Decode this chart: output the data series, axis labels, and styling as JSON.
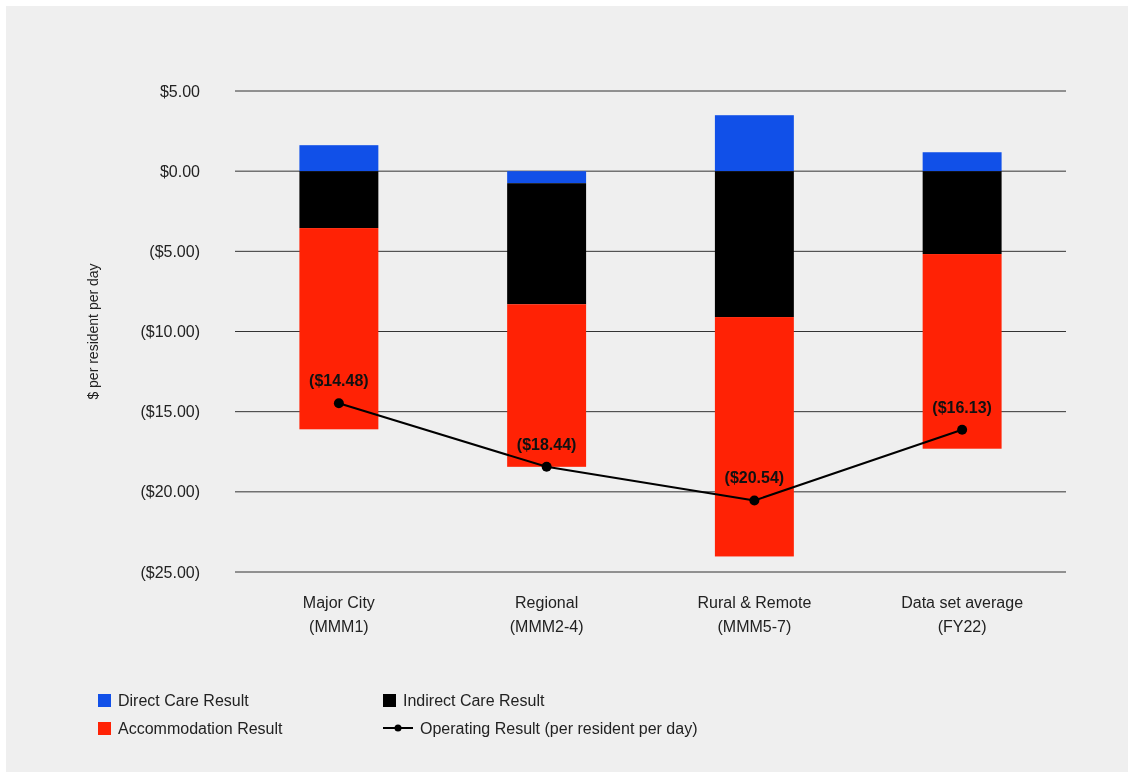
{
  "chart_data": {
    "type": "bar",
    "stacked": true,
    "ylabel": "$ per resident per day",
    "categories": [
      "Major City\n(MMM1)",
      "Regional\n(MMM2-4)",
      "Rural & Remote\n(MMM5-7)",
      "Data set average\n(FY22)"
    ],
    "series": [
      {
        "name": "Direct Care Result",
        "color": "#1150e8",
        "values": [
          1.62,
          -0.75,
          3.49,
          1.18
        ]
      },
      {
        "name": "Indirect Care Result",
        "color": "#000000",
        "values": [
          -3.55,
          -7.55,
          -9.1,
          -5.17
        ]
      },
      {
        "name": "Accommodation Result",
        "color": "#ff2205",
        "values": [
          -12.55,
          -10.14,
          -14.93,
          -12.14
        ]
      },
      {
        "name": "Operating Result (per resident per day)",
        "type": "line",
        "color": "#000000",
        "marker": "circle",
        "values": [
          -14.48,
          -18.44,
          -20.54,
          -16.13
        ],
        "value_labels": [
          "($14.48)",
          "($18.44)",
          "($20.54)",
          "($16.13)"
        ]
      }
    ],
    "ylim": [
      -25,
      5
    ],
    "yticks": [
      {
        "value": 5,
        "label": "$5.00"
      },
      {
        "value": 0,
        "label": "$0.00"
      },
      {
        "value": -5,
        "label": "($5.00)"
      },
      {
        "value": -10,
        "label": "($10.00)"
      },
      {
        "value": -15,
        "label": "($15.00)"
      },
      {
        "value": -20,
        "label": "($20.00)"
      },
      {
        "value": -25,
        "label": "($25.00)"
      }
    ],
    "grid": "y",
    "legend": "bottom"
  }
}
